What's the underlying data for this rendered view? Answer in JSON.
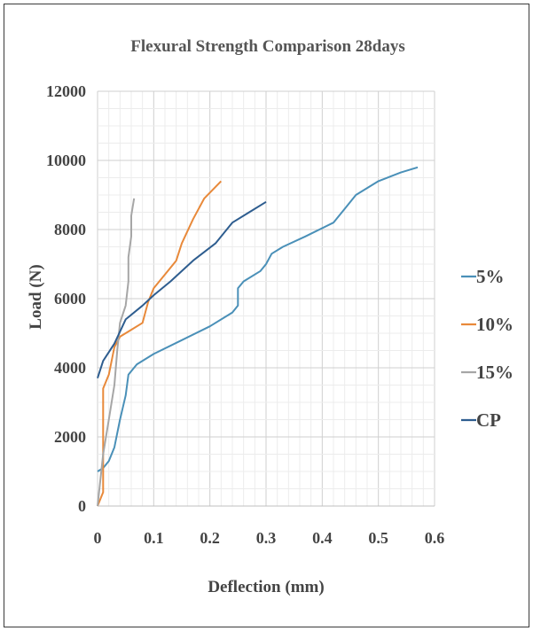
{
  "chart_data": {
    "type": "line",
    "title": "Flexural Strength Comparison 28days",
    "xlabel": "Deflection (mm)",
    "ylabel": "Load (N)",
    "xlim": [
      0,
      0.6
    ],
    "ylim": [
      0,
      12000
    ],
    "x_ticks": [
      "0",
      "0.1",
      "0.2",
      "0.3",
      "0.4",
      "0.5",
      "0.6"
    ],
    "y_ticks": [
      "0",
      "2000",
      "4000",
      "6000",
      "8000",
      "10000",
      "12000"
    ],
    "grid": true,
    "legend_position": "right",
    "series": [
      {
        "name": "5%",
        "color": "#4a90b8",
        "points": [
          [
            0.0,
            1000
          ],
          [
            0.01,
            1100
          ],
          [
            0.02,
            1300
          ],
          [
            0.03,
            1700
          ],
          [
            0.04,
            2500
          ],
          [
            0.05,
            3200
          ],
          [
            0.055,
            3800
          ],
          [
            0.07,
            4100
          ],
          [
            0.1,
            4400
          ],
          [
            0.15,
            4800
          ],
          [
            0.2,
            5200
          ],
          [
            0.24,
            5600
          ],
          [
            0.25,
            5800
          ],
          [
            0.25,
            6300
          ],
          [
            0.26,
            6500
          ],
          [
            0.29,
            6800
          ],
          [
            0.3,
            7000
          ],
          [
            0.31,
            7300
          ],
          [
            0.33,
            7500
          ],
          [
            0.37,
            7800
          ],
          [
            0.42,
            8200
          ],
          [
            0.44,
            8600
          ],
          [
            0.46,
            9000
          ],
          [
            0.5,
            9400
          ],
          [
            0.54,
            9650
          ],
          [
            0.57,
            9800
          ]
        ]
      },
      {
        "name": "10%",
        "color": "#e8893a",
        "points": [
          [
            0.0,
            0
          ],
          [
            0.01,
            400
          ],
          [
            0.01,
            1500
          ],
          [
            0.01,
            3400
          ],
          [
            0.02,
            3800
          ],
          [
            0.03,
            4600
          ],
          [
            0.04,
            4900
          ],
          [
            0.06,
            5100
          ],
          [
            0.08,
            5300
          ],
          [
            0.09,
            5900
          ],
          [
            0.1,
            6300
          ],
          [
            0.12,
            6700
          ],
          [
            0.14,
            7100
          ],
          [
            0.15,
            7600
          ],
          [
            0.17,
            8300
          ],
          [
            0.19,
            8900
          ],
          [
            0.22,
            9400
          ]
        ]
      },
      {
        "name": "15%",
        "color": "#a6a6a6",
        "points": [
          [
            0.0,
            0
          ],
          [
            0.01,
            1500
          ],
          [
            0.02,
            2500
          ],
          [
            0.03,
            3500
          ],
          [
            0.035,
            4500
          ],
          [
            0.04,
            5300
          ],
          [
            0.05,
            5800
          ],
          [
            0.055,
            6500
          ],
          [
            0.055,
            7200
          ],
          [
            0.06,
            7800
          ],
          [
            0.06,
            8400
          ],
          [
            0.065,
            8900
          ]
        ]
      },
      {
        "name": "CP",
        "color": "#2e5d8f",
        "points": [
          [
            0.0,
            3700
          ],
          [
            0.01,
            4200
          ],
          [
            0.03,
            4700
          ],
          [
            0.05,
            5400
          ],
          [
            0.08,
            5800
          ],
          [
            0.1,
            6100
          ],
          [
            0.13,
            6500
          ],
          [
            0.17,
            7100
          ],
          [
            0.21,
            7600
          ],
          [
            0.24,
            8200
          ],
          [
            0.27,
            8500
          ],
          [
            0.3,
            8800
          ]
        ]
      }
    ]
  }
}
